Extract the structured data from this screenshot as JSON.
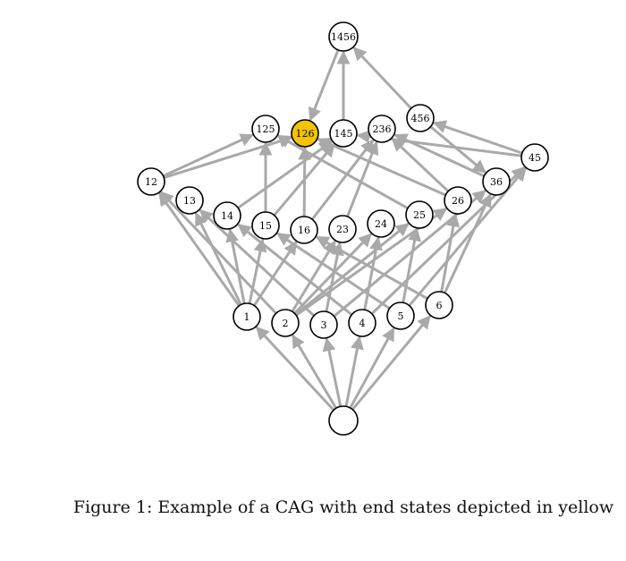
{
  "caption": "Figure 1: Example of a CAG with end states depicted in yellow",
  "colors": {
    "edge": "#a9a9a9",
    "node_fill": "#ffffff",
    "end_state_fill": "#f5c400",
    "node_stroke": "#000000"
  },
  "nodes": [
    {
      "id": "root",
      "label": "",
      "end_state": false
    },
    {
      "id": "1",
      "label": "1",
      "end_state": false
    },
    {
      "id": "2",
      "label": "2",
      "end_state": false
    },
    {
      "id": "3",
      "label": "3",
      "end_state": false
    },
    {
      "id": "4",
      "label": "4",
      "end_state": false
    },
    {
      "id": "5",
      "label": "5",
      "end_state": false
    },
    {
      "id": "6",
      "label": "6",
      "end_state": false
    },
    {
      "id": "12",
      "label": "12",
      "end_state": false
    },
    {
      "id": "13",
      "label": "13",
      "end_state": false
    },
    {
      "id": "14",
      "label": "14",
      "end_state": false
    },
    {
      "id": "15",
      "label": "15",
      "end_state": false
    },
    {
      "id": "16",
      "label": "16",
      "end_state": false
    },
    {
      "id": "23",
      "label": "23",
      "end_state": false
    },
    {
      "id": "24",
      "label": "24",
      "end_state": false
    },
    {
      "id": "25",
      "label": "25",
      "end_state": false
    },
    {
      "id": "26",
      "label": "26",
      "end_state": false
    },
    {
      "id": "36",
      "label": "36",
      "end_state": false
    },
    {
      "id": "45",
      "label": "45",
      "end_state": false
    },
    {
      "id": "125",
      "label": "125",
      "end_state": false
    },
    {
      "id": "126",
      "label": "126",
      "end_state": true
    },
    {
      "id": "145",
      "label": "145",
      "end_state": false
    },
    {
      "id": "236",
      "label": "236",
      "end_state": false
    },
    {
      "id": "456",
      "label": "456",
      "end_state": false
    },
    {
      "id": "1456",
      "label": "1456",
      "end_state": false
    }
  ],
  "edges": [
    [
      "root",
      "1"
    ],
    [
      "root",
      "2"
    ],
    [
      "root",
      "3"
    ],
    [
      "root",
      "4"
    ],
    [
      "root",
      "5"
    ],
    [
      "root",
      "6"
    ],
    [
      "1",
      "12"
    ],
    [
      "1",
      "13"
    ],
    [
      "1",
      "14"
    ],
    [
      "1",
      "15"
    ],
    [
      "1",
      "16"
    ],
    [
      "2",
      "12"
    ],
    [
      "2",
      "23"
    ],
    [
      "2",
      "24"
    ],
    [
      "2",
      "25"
    ],
    [
      "2",
      "26"
    ],
    [
      "3",
      "13"
    ],
    [
      "3",
      "23"
    ],
    [
      "3",
      "36"
    ],
    [
      "4",
      "14"
    ],
    [
      "4",
      "24"
    ],
    [
      "4",
      "45"
    ],
    [
      "5",
      "15"
    ],
    [
      "5",
      "25"
    ],
    [
      "5",
      "45"
    ],
    [
      "6",
      "16"
    ],
    [
      "6",
      "26"
    ],
    [
      "6",
      "36"
    ],
    [
      "12",
      "125"
    ],
    [
      "12",
      "126"
    ],
    [
      "14",
      "145"
    ],
    [
      "15",
      "125"
    ],
    [
      "15",
      "145"
    ],
    [
      "16",
      "126"
    ],
    [
      "16",
      "236"
    ],
    [
      "23",
      "236"
    ],
    [
      "25",
      "125"
    ],
    [
      "26",
      "126"
    ],
    [
      "26",
      "236"
    ],
    [
      "36",
      "236"
    ],
    [
      "45",
      "145"
    ],
    [
      "45",
      "456"
    ],
    [
      "1456",
      "126"
    ],
    [
      "145",
      "1456"
    ],
    [
      "456",
      "1456"
    ],
    [
      "456",
      "36"
    ]
  ]
}
